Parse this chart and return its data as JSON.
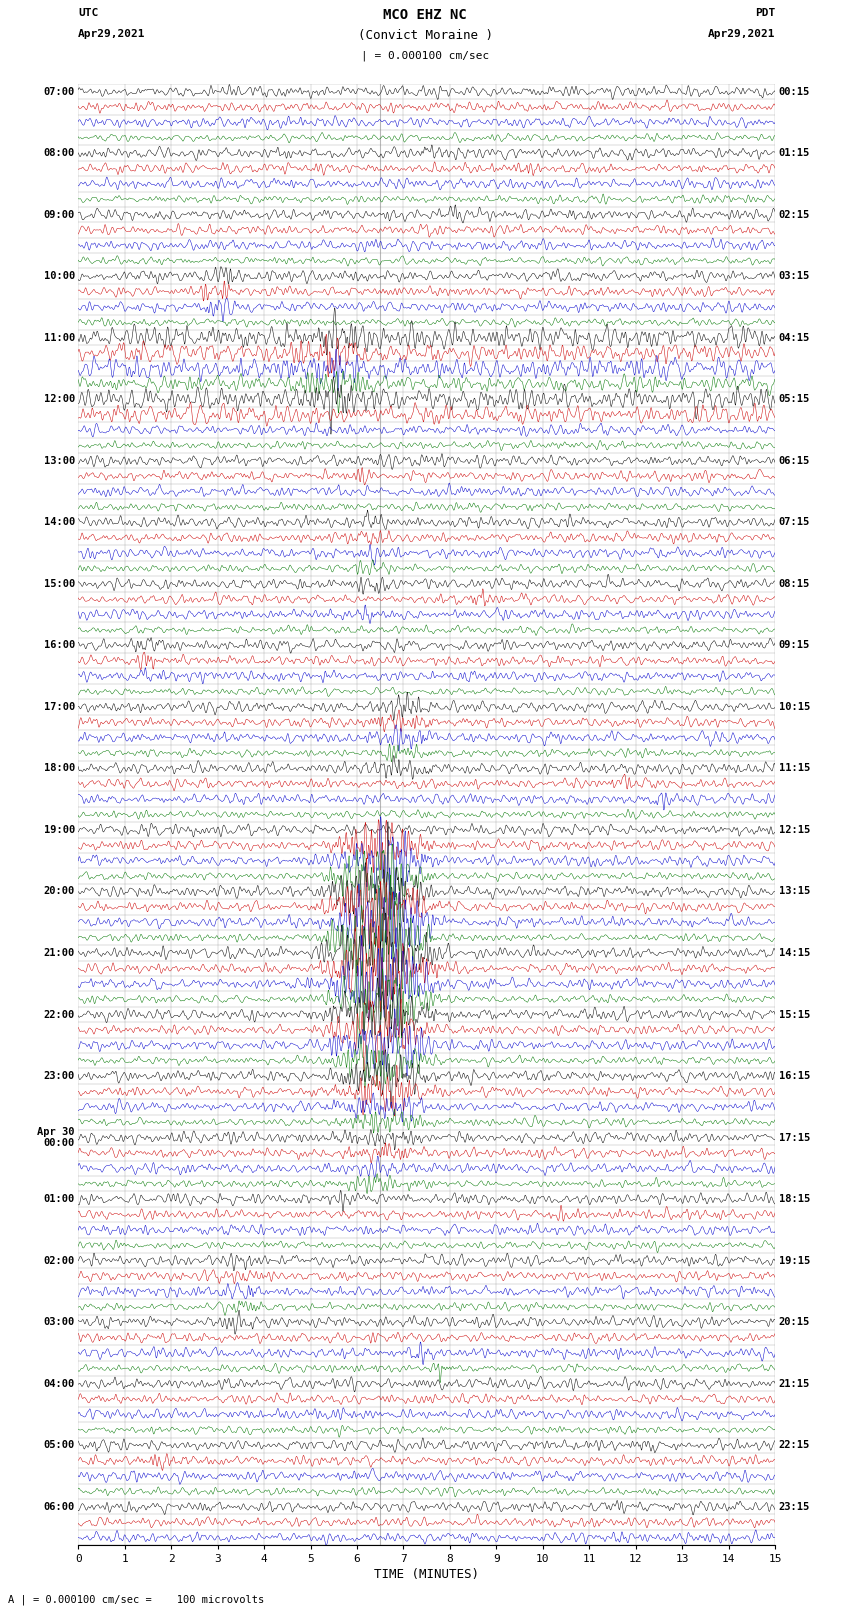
{
  "title_line1": "MCO EHZ NC",
  "title_line2": "(Convict Moraine )",
  "scale_label": "| = 0.000100 cm/sec",
  "left_header_line1": "UTC",
  "left_header_line2": "Apr29,2021",
  "right_header_line1": "PDT",
  "right_header_line2": "Apr29,2021",
  "footer": "A | = 0.000100 cm/sec =    100 microvolts",
  "xlabel": "TIME (MINUTES)",
  "x_ticks": [
    0,
    1,
    2,
    3,
    4,
    5,
    6,
    7,
    8,
    9,
    10,
    11,
    12,
    13,
    14,
    15
  ],
  "left_times_utc": [
    "07:00",
    "",
    "",
    "",
    "08:00",
    "",
    "",
    "",
    "09:00",
    "",
    "",
    "",
    "10:00",
    "",
    "",
    "",
    "11:00",
    "",
    "",
    "",
    "12:00",
    "",
    "",
    "",
    "13:00",
    "",
    "",
    "",
    "14:00",
    "",
    "",
    "",
    "15:00",
    "",
    "",
    "",
    "16:00",
    "",
    "",
    "",
    "17:00",
    "",
    "",
    "",
    "18:00",
    "",
    "",
    "",
    "19:00",
    "",
    "",
    "",
    "20:00",
    "",
    "",
    "",
    "21:00",
    "",
    "",
    "",
    "22:00",
    "",
    "",
    "",
    "23:00",
    "",
    "",
    "",
    "Apr 30\n00:00",
    "",
    "",
    "",
    "01:00",
    "",
    "",
    "",
    "02:00",
    "",
    "",
    "",
    "03:00",
    "",
    "",
    "",
    "04:00",
    "",
    "",
    "",
    "05:00",
    "",
    "",
    "",
    "06:00",
    "",
    ""
  ],
  "right_times_pdt": [
    "00:15",
    "",
    "",
    "",
    "01:15",
    "",
    "",
    "",
    "02:15",
    "",
    "",
    "",
    "03:15",
    "",
    "",
    "",
    "04:15",
    "",
    "",
    "",
    "05:15",
    "",
    "",
    "",
    "06:15",
    "",
    "",
    "",
    "07:15",
    "",
    "",
    "",
    "08:15",
    "",
    "",
    "",
    "09:15",
    "",
    "",
    "",
    "10:15",
    "",
    "",
    "",
    "11:15",
    "",
    "",
    "",
    "12:15",
    "",
    "",
    "",
    "13:15",
    "",
    "",
    "",
    "14:15",
    "",
    "",
    "",
    "15:15",
    "",
    "",
    "",
    "16:15",
    "",
    "",
    "",
    "17:15",
    "",
    "",
    "",
    "18:15",
    "",
    "",
    "",
    "19:15",
    "",
    "",
    "",
    "20:15",
    "",
    "",
    "",
    "21:15",
    "",
    "",
    "",
    "22:15",
    "",
    "",
    "",
    "23:15",
    "",
    ""
  ],
  "colors_cycle": [
    "black",
    "red",
    "blue",
    "green"
  ],
  "bg_color": "white",
  "trace_color_map": {
    "black": "#000000",
    "red": "#cc0000",
    "blue": "#0000cc",
    "green": "#007700"
  },
  "figsize": [
    8.5,
    16.13
  ],
  "dpi": 100,
  "n_rows": 95,
  "vline_color": "#888888",
  "vline_x": [
    6.5
  ],
  "grid_color": "#999999"
}
